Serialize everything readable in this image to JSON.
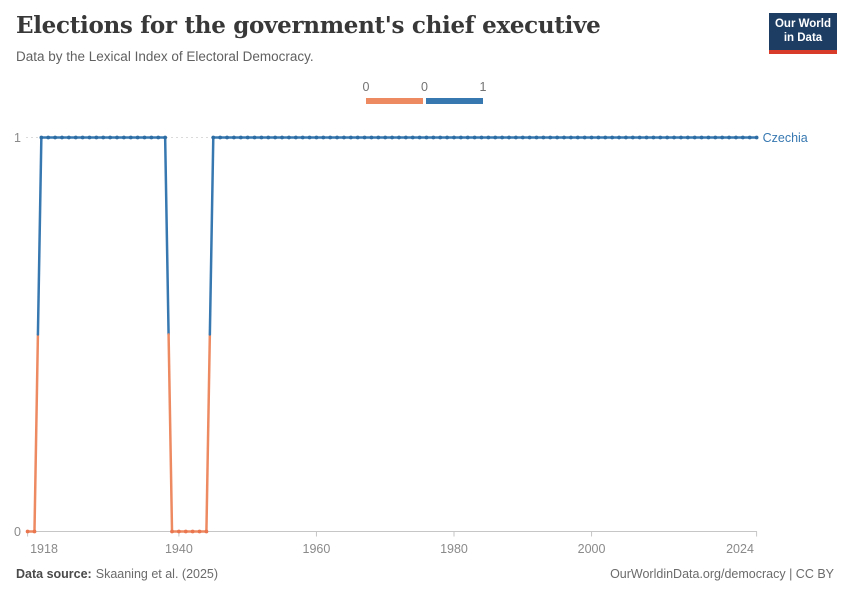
{
  "header": {
    "title": "Elections for the government's chief executive",
    "subtitle": "Data by the Lexical Index of Electoral Democracy.",
    "logo": {
      "line1": "Our World",
      "line2": "in Data",
      "bg_color": "#1D3D63",
      "accent_color": "#D93B2B"
    }
  },
  "legend": {
    "labels": [
      "0",
      "0",
      "1"
    ],
    "colors": {
      "low": "#EE8A62",
      "high": "#3778B1"
    }
  },
  "chart_data": {
    "type": "line",
    "style": "step-line-with-yearly-dot-markers",
    "title": "Elections for the government's chief executive",
    "subtitle": "Data by the Lexical Index of Electoral Democracy.",
    "xlabel": "",
    "ylabel": "",
    "x_range": [
      1918,
      2024
    ],
    "y_range": [
      0,
      1
    ],
    "x_ticks": [
      1918,
      1940,
      1960,
      1980,
      2000,
      2024
    ],
    "y_ticks": [
      0,
      1
    ],
    "grid": "dashed gridline at y=1, solid baseline axis at y=0",
    "legend_position": "top-center",
    "series": [
      {
        "name": "Czechia",
        "label_color": "#3778B1",
        "colors": {
          "0": "#EE8A62",
          "1": "#3778B1"
        },
        "dot_colors": {
          "0": "#E9764E",
          "1": "#2D6DA4"
        },
        "segments": [
          {
            "from": 1918,
            "to": 1919,
            "value": 0
          },
          {
            "from": 1920,
            "to": 1938,
            "value": 1
          },
          {
            "from": 1939,
            "to": 1944,
            "value": 0
          },
          {
            "from": 1945,
            "to": 2024,
            "value": 1
          }
        ]
      }
    ]
  },
  "footer": {
    "source_label": "Data source:",
    "source_value": "Skaaning et al. (2025)",
    "credit": "OurWorldinData.org/democracy | CC BY"
  }
}
